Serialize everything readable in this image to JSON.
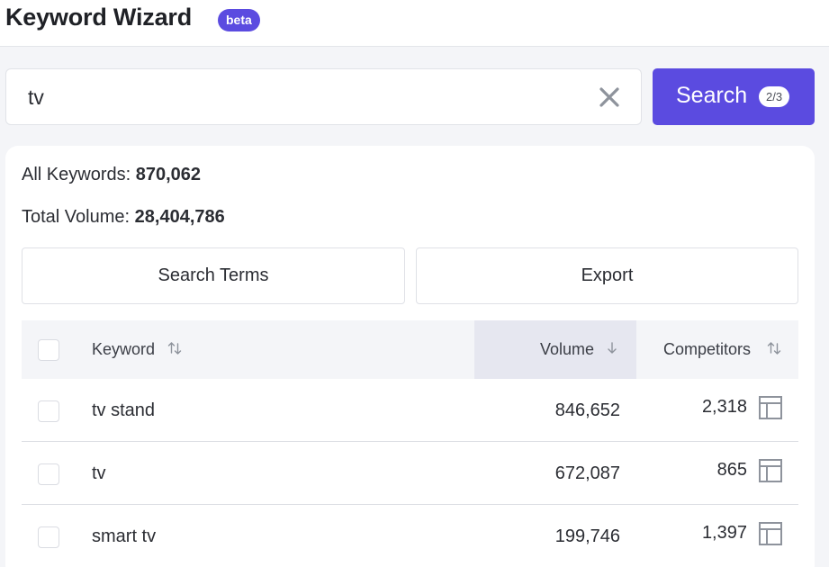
{
  "header": {
    "title": "Keyword Wizard",
    "badge": "beta"
  },
  "search": {
    "value": "tv",
    "button_label": "Search",
    "counter": "2/3"
  },
  "summary": {
    "all_keywords_label": "All Keywords:",
    "all_keywords_value": "870,062",
    "total_volume_label": "Total Volume:",
    "total_volume_value": "28,404,786"
  },
  "actions": {
    "search_terms": "Search Terms",
    "export": "Export"
  },
  "table": {
    "columns": {
      "keyword": "Keyword",
      "volume": "Volume",
      "competitors": "Competitors"
    },
    "sorted_column": "volume",
    "rows": [
      {
        "keyword": "tv stand",
        "volume": "846,652",
        "competitors": "2,318"
      },
      {
        "keyword": "tv",
        "volume": "672,087",
        "competitors": "865"
      },
      {
        "keyword": "smart tv",
        "volume": "199,746",
        "competitors": "1,397"
      }
    ]
  },
  "colors": {
    "accent": "#5b4be0",
    "sorted_header_bg": "#e6e7f0",
    "page_bg": "#f4f5f8"
  },
  "icons": [
    "close-icon",
    "sort-icon",
    "sort-down-icon",
    "table-layout-icon",
    "checkbox"
  ]
}
